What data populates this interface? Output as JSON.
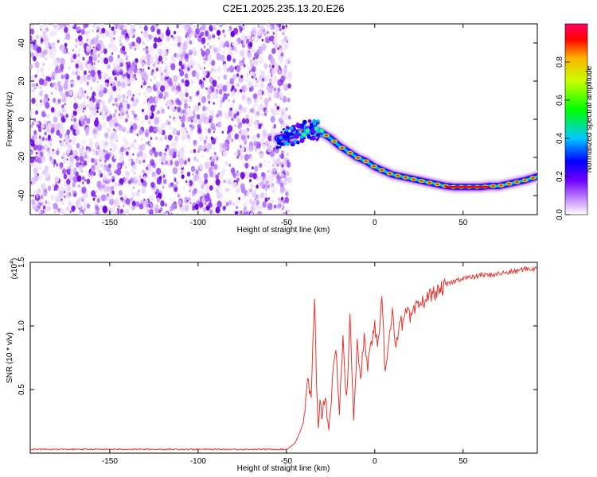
{
  "title": "C2E1.2025.235.13.20.E26",
  "chart_data": [
    {
      "type": "heatmap",
      "name": "spectrogram",
      "xlabel": "Height of straight line (km)",
      "ylabel": "Frequency (Hz)",
      "xlim": [
        -195,
        92
      ],
      "ylim": [
        -50,
        50
      ],
      "xticks": [
        -150,
        -100,
        -50,
        0,
        50
      ],
      "yticks": [
        -40,
        -20,
        0,
        20,
        40
      ],
      "noise_region_x": [
        -195,
        -48
      ],
      "signal_track": {
        "x": [
          -55,
          -48,
          -40,
          -35,
          -30,
          -25,
          -20,
          -15,
          -10,
          -5,
          0,
          5,
          10,
          15,
          20,
          25,
          30,
          35,
          40,
          45,
          50,
          55,
          60,
          65,
          70,
          75,
          80,
          85,
          92
        ],
        "y": [
          -10,
          -9,
          -6,
          -5,
          -7,
          -10,
          -14,
          -17,
          -20,
          -22,
          -25,
          -27,
          -29,
          -30,
          -31,
          -32,
          -33,
          -34,
          -35,
          -35.5,
          -35.5,
          -35.5,
          -35.5,
          -35,
          -35,
          -34,
          -33,
          -32,
          -30
        ]
      }
    },
    {
      "type": "colorbar",
      "label": "Normalized spectral amplitude",
      "range": [
        0,
        1
      ],
      "ticks": [
        "0.0",
        "0.2",
        "0.4",
        "0.6",
        "0.8"
      ]
    },
    {
      "type": "line",
      "name": "snr",
      "xlabel": "Height of straight line (km)",
      "ylabel": "SNR (10 * v/v)",
      "multiplier": "(x10",
      "multiplier_exp": "4",
      "xlim": [
        -195,
        92
      ],
      "ylim": [
        0,
        1.5
      ],
      "xticks": [
        -150,
        -100,
        -50,
        0,
        50
      ],
      "yticks": [
        0.5,
        1.0,
        1.5
      ],
      "ytick_labels": [
        "0.5",
        "1.0",
        "1.5"
      ],
      "series": [
        {
          "name": "SNR",
          "color": "#e8342e",
          "x": [
            -195,
            -150,
            -100,
            -60,
            -50,
            -45,
            -40,
            -38,
            -36,
            -35,
            -34,
            -33,
            -32,
            -31,
            -30,
            -28,
            -26,
            -24,
            -22,
            -20,
            -18,
            -16,
            -14,
            -12,
            -10,
            -8,
            -6,
            -4,
            -2,
            0,
            2,
            4,
            6,
            8,
            10,
            12,
            14,
            16,
            18,
            20,
            24,
            28,
            32,
            36,
            40,
            45,
            50,
            55,
            60,
            65,
            70,
            75,
            80,
            85,
            90,
            92
          ],
          "values": [
            0.03,
            0.03,
            0.03,
            0.03,
            0.03,
            0.08,
            0.25,
            0.6,
            0.4,
            0.85,
            1.18,
            0.5,
            0.2,
            0.45,
            0.3,
            0.45,
            0.2,
            0.55,
            0.8,
            0.35,
            0.9,
            0.4,
            1.05,
            0.3,
            0.85,
            0.55,
            0.95,
            0.7,
            0.85,
            1.0,
            0.85,
            1.2,
            0.6,
            0.95,
            1.1,
            0.85,
            1.05,
            1.0,
            1.12,
            1.05,
            1.15,
            1.2,
            1.25,
            1.27,
            1.32,
            1.35,
            1.38,
            1.38,
            1.4,
            1.4,
            1.41,
            1.42,
            1.43,
            1.45,
            1.45,
            1.45
          ]
        }
      ]
    }
  ]
}
